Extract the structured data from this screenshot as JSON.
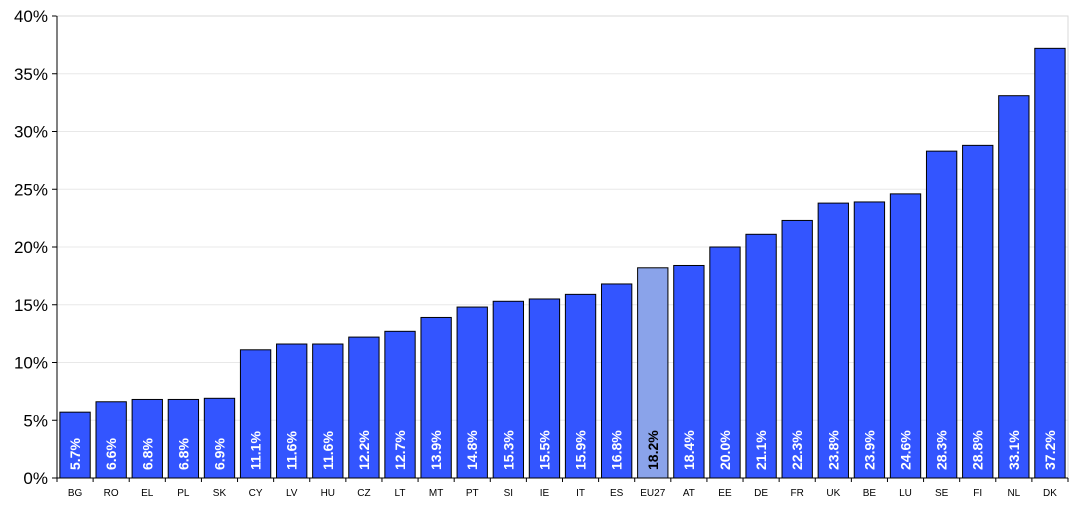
{
  "chart_data": {
    "type": "bar",
    "title": "",
    "xlabel": "",
    "ylabel": "",
    "ylim": [
      0,
      40
    ],
    "y_ticks": [
      "0%",
      "5%",
      "10%",
      "15%",
      "20%",
      "25%",
      "30%",
      "35%",
      "40%"
    ],
    "grid": "horizontal",
    "categories": [
      "BG",
      "RO",
      "EL",
      "PL",
      "SK",
      "CY",
      "LV",
      "HU",
      "CZ",
      "LT",
      "MT",
      "PT",
      "SI",
      "IE",
      "IT",
      "ES",
      "EU27",
      "AT",
      "EE",
      "DE",
      "FR",
      "UK",
      "BE",
      "LU",
      "SE",
      "FI",
      "NL",
      "DK"
    ],
    "values": [
      5.7,
      6.6,
      6.8,
      6.8,
      6.9,
      11.1,
      11.6,
      11.6,
      12.2,
      12.7,
      13.9,
      14.8,
      15.3,
      15.5,
      15.9,
      16.8,
      18.2,
      18.4,
      20.0,
      21.1,
      22.3,
      23.8,
      23.9,
      24.6,
      28.3,
      28.8,
      33.1,
      37.2
    ],
    "data_labels": [
      "5.7%",
      "6.6%",
      "6.8%",
      "6.8%",
      "6.9%",
      "11.1%",
      "11.6%",
      "11.6%",
      "12.2%",
      "12.7%",
      "13.9%",
      "14.8%",
      "15.3%",
      "15.5%",
      "15.9%",
      "16.8%",
      "18.2%",
      "18.4%",
      "20.0%",
      "21.1%",
      "22.3%",
      "23.8%",
      "23.9%",
      "24.6%",
      "28.3%",
      "28.8%",
      "33.1%",
      "37.2%"
    ],
    "highlight_category": "EU27",
    "colors": {
      "bar": "#3355ff",
      "highlight_bar": "#8aa3ea",
      "bar_outline": "#000000",
      "label": "#ffffff",
      "highlight_label": "#000000",
      "grid": "#e8e8e8"
    }
  }
}
